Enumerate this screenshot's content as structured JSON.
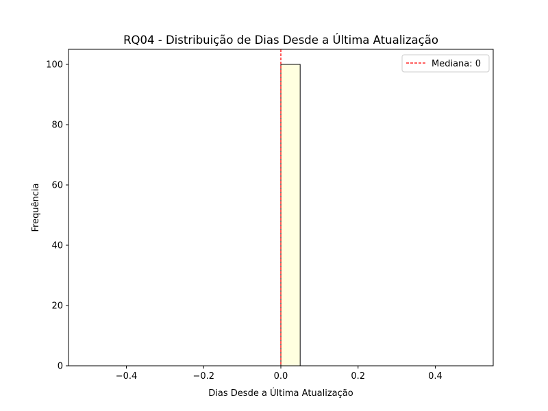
{
  "chart_data": {
    "type": "bar",
    "title": "RQ04 - Distribuição de Dias Desde a Última Atualização",
    "xlabel": "Dias Desde a Última Atualização",
    "ylabel": "Frequência",
    "xlim": [
      -0.55,
      0.55
    ],
    "ylim": [
      0,
      105
    ],
    "xticks": [
      -0.4,
      -0.2,
      0.0,
      0.2,
      0.4
    ],
    "xtick_labels": [
      "−0.4",
      "−0.2",
      "0.0",
      "0.2",
      "0.4"
    ],
    "yticks": [
      0,
      20,
      40,
      60,
      80,
      100
    ],
    "ytick_labels": [
      "0",
      "20",
      "40",
      "60",
      "80",
      "100"
    ],
    "bins": {
      "edges": [
        -0.5,
        -0.45,
        -0.4,
        -0.35,
        -0.3,
        -0.25,
        -0.2,
        -0.15,
        -0.1,
        -0.05,
        0.0,
        0.05,
        0.1,
        0.15,
        0.2,
        0.25,
        0.3,
        0.35,
        0.4,
        0.45,
        0.5
      ],
      "counts": [
        0,
        0,
        0,
        0,
        0,
        0,
        0,
        0,
        0,
        0,
        100,
        0,
        0,
        0,
        0,
        0,
        0,
        0,
        0,
        0
      ]
    },
    "bar_color": "#ffffe0",
    "edge_color": "#000000",
    "median": {
      "value": 0,
      "label": "Mediana: 0",
      "color": "#ff0000",
      "style": "dashed"
    },
    "legend": {
      "position": "top-right"
    },
    "grid": false
  }
}
